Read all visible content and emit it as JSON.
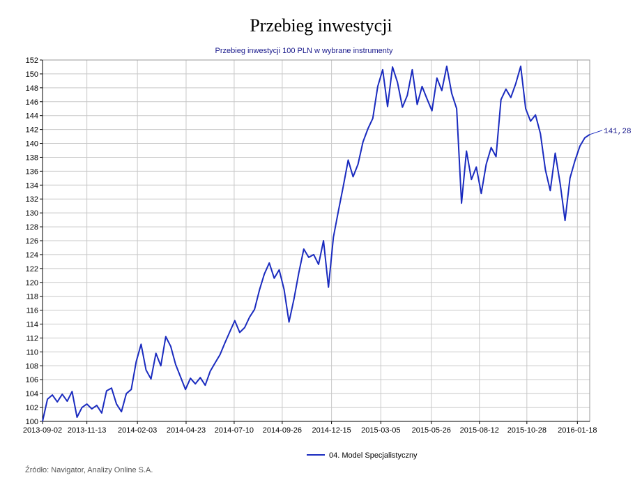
{
  "page": {
    "title": "Przebieg inwestycji",
    "source": "Źródło: Navigator, Analizy Online S.A."
  },
  "chart_data": {
    "type": "line",
    "title": "Przebieg inwestycji",
    "subtitle": "Przebieg inwestycji 100 PLN w wybrane instrumenty",
    "xlabel": "",
    "ylabel": "",
    "ylim": [
      100,
      152
    ],
    "yticks": [
      100,
      102,
      104,
      106,
      108,
      110,
      112,
      114,
      116,
      118,
      120,
      122,
      124,
      126,
      128,
      130,
      132,
      134,
      136,
      138,
      140,
      142,
      144,
      146,
      148,
      150,
      152
    ],
    "xticks": [
      "2013-09-02",
      "2013-11-13",
      "2014-02-03",
      "2014-04-23",
      "2014-07-10",
      "2014-09-26",
      "2014-12-15",
      "2015-03-05",
      "2015-05-26",
      "2015-08-12",
      "2015-10-28",
      "2016-01-18"
    ],
    "grid": true,
    "legend_position": "bottom-center",
    "end_label": "141,28",
    "colors": {
      "series": "#1a2bbf",
      "grid": "#c8c8c8",
      "axis": "#000000"
    },
    "series": [
      {
        "name": "04. Model Specjalistyczny",
        "points": [
          [
            "2013-09-02",
            100.0
          ],
          [
            "2013-09-10",
            103.2
          ],
          [
            "2013-09-18",
            103.8
          ],
          [
            "2013-09-26",
            102.8
          ],
          [
            "2013-10-04",
            103.9
          ],
          [
            "2013-10-12",
            102.9
          ],
          [
            "2013-10-20",
            104.3
          ],
          [
            "2013-10-28",
            100.6
          ],
          [
            "2013-11-05",
            102.0
          ],
          [
            "2013-11-13",
            102.5
          ],
          [
            "2013-11-21",
            101.8
          ],
          [
            "2013-11-29",
            102.3
          ],
          [
            "2013-12-07",
            101.2
          ],
          [
            "2013-12-15",
            104.4
          ],
          [
            "2013-12-23",
            104.8
          ],
          [
            "2013-12-31",
            102.5
          ],
          [
            "2014-01-08",
            101.4
          ],
          [
            "2014-01-16",
            104.0
          ],
          [
            "2014-01-24",
            104.6
          ],
          [
            "2014-02-01",
            108.6
          ],
          [
            "2014-02-09",
            111.1
          ],
          [
            "2014-02-17",
            107.4
          ],
          [
            "2014-02-25",
            106.1
          ],
          [
            "2014-03-05",
            109.8
          ],
          [
            "2014-03-13",
            108.0
          ],
          [
            "2014-03-21",
            112.2
          ],
          [
            "2014-03-29",
            110.8
          ],
          [
            "2014-04-06",
            108.2
          ],
          [
            "2014-04-14",
            106.4
          ],
          [
            "2014-04-22",
            104.6
          ],
          [
            "2014-04-30",
            106.2
          ],
          [
            "2014-05-08",
            105.4
          ],
          [
            "2014-05-16",
            106.3
          ],
          [
            "2014-05-24",
            105.2
          ],
          [
            "2014-06-01",
            107.2
          ],
          [
            "2014-06-09",
            108.4
          ],
          [
            "2014-06-17",
            109.6
          ],
          [
            "2014-06-25",
            111.3
          ],
          [
            "2014-07-03",
            112.9
          ],
          [
            "2014-07-11",
            114.5
          ],
          [
            "2014-07-19",
            112.8
          ],
          [
            "2014-07-27",
            113.5
          ],
          [
            "2014-08-04",
            115.0
          ],
          [
            "2014-08-12",
            116.1
          ],
          [
            "2014-08-20",
            118.9
          ],
          [
            "2014-08-28",
            121.2
          ],
          [
            "2014-09-05",
            122.8
          ],
          [
            "2014-09-13",
            120.6
          ],
          [
            "2014-09-21",
            121.8
          ],
          [
            "2014-09-29",
            119.0
          ],
          [
            "2014-10-07",
            114.3
          ],
          [
            "2014-10-15",
            117.6
          ],
          [
            "2014-10-23",
            121.4
          ],
          [
            "2014-10-31",
            124.8
          ],
          [
            "2014-11-08",
            123.6
          ],
          [
            "2014-11-16",
            124.0
          ],
          [
            "2014-11-24",
            122.6
          ],
          [
            "2014-12-02",
            126.0
          ],
          [
            "2014-12-10",
            119.3
          ],
          [
            "2014-12-18",
            126.5
          ],
          [
            "2014-12-26",
            130.2
          ],
          [
            "2015-01-03",
            133.8
          ],
          [
            "2015-01-11",
            137.6
          ],
          [
            "2015-01-19",
            135.2
          ],
          [
            "2015-01-27",
            137.0
          ],
          [
            "2015-02-04",
            140.2
          ],
          [
            "2015-02-12",
            142.1
          ],
          [
            "2015-02-20",
            143.6
          ],
          [
            "2015-02-28",
            148.2
          ],
          [
            "2015-03-08",
            150.6
          ],
          [
            "2015-03-16",
            145.3
          ],
          [
            "2015-03-24",
            151.0
          ],
          [
            "2015-04-01",
            148.8
          ],
          [
            "2015-04-09",
            145.2
          ],
          [
            "2015-04-17",
            146.9
          ],
          [
            "2015-04-25",
            150.6
          ],
          [
            "2015-05-03",
            145.6
          ],
          [
            "2015-05-11",
            148.2
          ],
          [
            "2015-05-19",
            146.4
          ],
          [
            "2015-05-27",
            144.7
          ],
          [
            "2015-06-04",
            149.4
          ],
          [
            "2015-06-12",
            147.6
          ],
          [
            "2015-06-20",
            151.1
          ],
          [
            "2015-06-28",
            147.2
          ],
          [
            "2015-07-06",
            145.0
          ],
          [
            "2015-07-14",
            131.4
          ],
          [
            "2015-07-22",
            138.9
          ],
          [
            "2015-07-30",
            134.8
          ],
          [
            "2015-08-07",
            136.6
          ],
          [
            "2015-08-15",
            132.8
          ],
          [
            "2015-08-23",
            137.0
          ],
          [
            "2015-08-31",
            139.4
          ],
          [
            "2015-09-08",
            138.1
          ],
          [
            "2015-09-16",
            146.3
          ],
          [
            "2015-09-24",
            147.8
          ],
          [
            "2015-10-02",
            146.6
          ],
          [
            "2015-10-10",
            148.6
          ],
          [
            "2015-10-18",
            151.1
          ],
          [
            "2015-10-26",
            145.0
          ],
          [
            "2015-11-03",
            143.2
          ],
          [
            "2015-11-11",
            144.1
          ],
          [
            "2015-11-19",
            141.4
          ],
          [
            "2015-11-27",
            136.2
          ],
          [
            "2015-12-05",
            133.2
          ],
          [
            "2015-12-13",
            138.6
          ],
          [
            "2015-12-21",
            134.2
          ],
          [
            "2015-12-29",
            128.9
          ],
          [
            "2016-01-06",
            135.0
          ],
          [
            "2016-01-14",
            137.5
          ],
          [
            "2016-01-22",
            139.6
          ],
          [
            "2016-01-30",
            140.8
          ],
          [
            "2016-02-07",
            141.28
          ]
        ]
      }
    ]
  }
}
